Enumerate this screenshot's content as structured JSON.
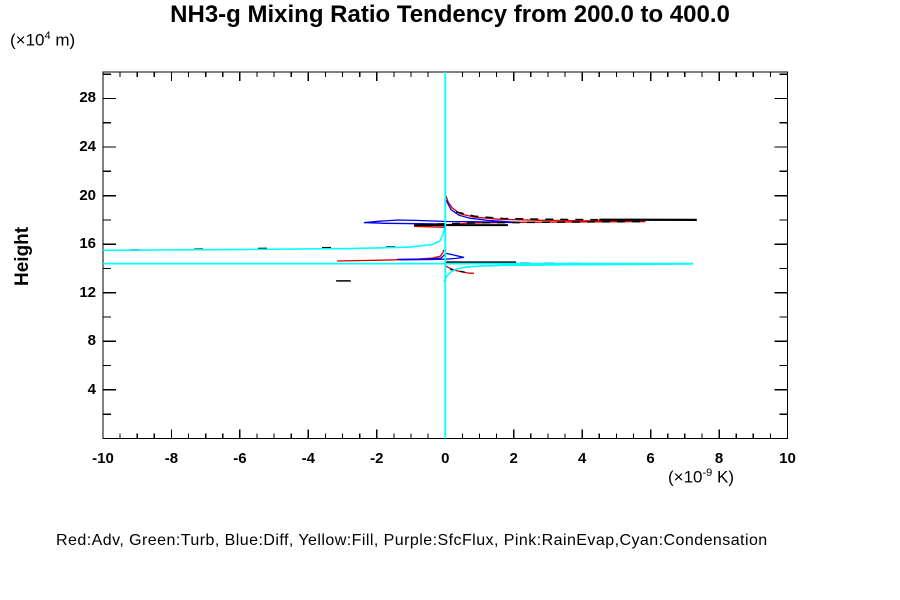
{
  "title": "NH3-g Mixing Ratio Tendency from 200.0 to 400.0",
  "y_axis_label": "Height",
  "y_unit": {
    "prefix": "(×10",
    "sup": "4",
    "suffix": " m)"
  },
  "x_unit": {
    "prefix": "(×10",
    "sup": "-9",
    "suffix": " K)"
  },
  "legend_line": "Red:Adv, Green:Turb, Blue:Diff, Yellow:Fill, Purple:SfcFlux, Pink:RainEvap,Cyan:Condensation",
  "chart_data": {
    "type": "line",
    "title": "NH3-g Mixing Ratio Tendency from 200.0 to 400.0",
    "xlabel": "(×10⁻⁹ K)",
    "ylabel": "Height (×10⁴ m)",
    "xlim": [
      -10,
      10
    ],
    "ylim": [
      0,
      30.18
    ],
    "grid": false,
    "x_ticks": [
      -10,
      -8,
      -6,
      -4,
      -2,
      0,
      2,
      4,
      6,
      8,
      10
    ],
    "x_tick_labels": [
      "-10",
      "-8",
      "-6",
      "-4",
      "-2",
      "0",
      "2",
      "4",
      "6",
      "8",
      "10"
    ],
    "x_minor_step": 0.5,
    "y_ticks": [
      4,
      8,
      12,
      16,
      20,
      24,
      28
    ],
    "y_tick_labels": [
      "4",
      "8",
      "12",
      "16",
      "20",
      "24",
      "28"
    ],
    "y_minor_step": 2,
    "legend": [
      "Red:Adv",
      "Green:Turb",
      "Blue:Diff",
      "Yellow:Fill",
      "Purple:SfcFlux",
      "Pink:RainEvap",
      "Cyan:Condensation"
    ],
    "series": [
      {
        "name": "adv-red-upper-spike",
        "color": "#dd0000",
        "width": 1.3,
        "dash": "",
        "points": [
          [
            0.02,
            20.0
          ],
          [
            0.08,
            19.5
          ],
          [
            0.2,
            19.0
          ],
          [
            0.43,
            18.5
          ],
          [
            0.87,
            18.22
          ],
          [
            1.6,
            18.05
          ],
          [
            2.77,
            17.97
          ],
          [
            4.0,
            17.93
          ],
          [
            5.2,
            17.89
          ],
          [
            5.85,
            17.86
          ],
          [
            4.5,
            17.84
          ],
          [
            2.18,
            17.8
          ],
          [
            0.72,
            17.74
          ],
          [
            0.14,
            17.62
          ],
          [
            -0.91,
            17.47
          ],
          [
            -0.01,
            17.39
          ],
          [
            -0.01,
            17.0
          ]
        ]
      },
      {
        "name": "adv-red-lower-left",
        "color": "#dd0000",
        "width": 1.3,
        "dash": "",
        "points": [
          [
            -3.16,
            14.62
          ],
          [
            -1.91,
            14.68
          ],
          [
            -0.89,
            14.76
          ],
          [
            -0.36,
            14.86
          ],
          [
            -0.15,
            15.0
          ],
          [
            -0.07,
            15.3
          ],
          [
            -0.04,
            15.54
          ]
        ]
      },
      {
        "name": "adv-red-lower-right",
        "color": "#dd0000",
        "width": 1.3,
        "dash": "",
        "points": [
          [
            -0.01,
            14.26
          ],
          [
            0.11,
            14.06
          ],
          [
            0.28,
            13.85
          ],
          [
            0.46,
            13.73
          ],
          [
            0.66,
            13.63
          ],
          [
            0.84,
            13.6
          ]
        ]
      },
      {
        "name": "diff-blue-upper",
        "color": "#0000ee",
        "width": 1.3,
        "dash": "",
        "points": [
          [
            0.02,
            19.66
          ],
          [
            0.17,
            18.84
          ],
          [
            0.4,
            18.39
          ],
          [
            0.72,
            18.14
          ],
          [
            1.25,
            17.96
          ],
          [
            1.95,
            17.83
          ],
          [
            2.18,
            17.78
          ],
          [
            1.6,
            17.82
          ],
          [
            0.72,
            17.85
          ],
          [
            0.05,
            17.87
          ],
          [
            -0.74,
            17.95
          ],
          [
            -1.38,
            17.99
          ],
          [
            -1.91,
            17.89
          ],
          [
            -2.38,
            17.78
          ],
          [
            -1.76,
            17.72
          ],
          [
            -0.74,
            17.69
          ],
          [
            -0.04,
            17.66
          ],
          [
            -0.01,
            17.35
          ]
        ]
      },
      {
        "name": "diff-blue-lower",
        "color": "#0000ee",
        "width": 1.3,
        "dash": "",
        "points": [
          [
            -1.41,
            14.75
          ],
          [
            -0.51,
            14.78
          ],
          [
            -0.13,
            14.85
          ],
          [
            -0.04,
            15.09
          ],
          [
            0.02,
            15.25
          ],
          [
            0.2,
            15.14
          ],
          [
            0.43,
            14.99
          ],
          [
            0.55,
            14.91
          ],
          [
            0.28,
            14.82
          ],
          [
            0.02,
            14.77
          ],
          [
            -0.51,
            14.73
          ],
          [
            -1.32,
            14.72
          ]
        ]
      },
      {
        "name": "black-dash-upper-out",
        "color": "#000000",
        "width": 1.5,
        "dash": "8,7",
        "points": [
          [
            0.31,
            18.67
          ],
          [
            0.87,
            18.3
          ],
          [
            1.74,
            18.11
          ],
          [
            3.35,
            18.04
          ],
          [
            4.5,
            18.02
          ]
        ]
      },
      {
        "name": "black-solid-tip",
        "color": "#000000",
        "width": 2.2,
        "dash": "",
        "points": [
          [
            4.5,
            18.02
          ],
          [
            7.35,
            18.0
          ]
        ]
      },
      {
        "name": "black-dash-upper-return",
        "color": "#000000",
        "width": 1.5,
        "dash": "8,7",
        "points": [
          [
            5.69,
            17.86
          ],
          [
            3.35,
            17.82
          ],
          [
            1.01,
            17.76
          ],
          [
            -0.15,
            17.66
          ],
          [
            -0.86,
            17.57
          ]
        ]
      },
      {
        "name": "black-solid-mid",
        "color": "#000000",
        "width": 2,
        "dash": "",
        "points": [
          [
            -0.91,
            17.57
          ],
          [
            1.83,
            17.57
          ]
        ]
      },
      {
        "name": "black-solid-lower",
        "color": "#000000",
        "width": 2,
        "dash": "",
        "points": [
          [
            -0.01,
            14.5
          ],
          [
            2.07,
            14.5
          ]
        ]
      },
      {
        "name": "black-dash-lower",
        "color": "#000000",
        "width": 1.8,
        "dash": "11,13",
        "points": [
          [
            2.18,
            14.42
          ],
          [
            5.69,
            14.36
          ]
        ]
      },
      {
        "name": "black-dash-slope",
        "color": "#000000",
        "width": 1.4,
        "dash": "9,55",
        "points": [
          [
            -9.21,
            15.52
          ],
          [
            -0.74,
            15.81
          ]
        ]
      },
      {
        "name": "black-stray-dash",
        "color": "#000000",
        "width": 1.5,
        "dash": "",
        "points": [
          [
            -3.19,
            12.98
          ],
          [
            -2.76,
            12.98
          ]
        ]
      },
      {
        "name": "black-dash-descend",
        "color": "#000000",
        "width": 1.3,
        "dash": "5,5",
        "points": [
          [
            0.14,
            13.93
          ],
          [
            0.72,
            13.62
          ]
        ]
      },
      {
        "name": "condensation-cyan-vertical",
        "color": "#00ffff",
        "width": 1.8,
        "dash": "",
        "points": [
          [
            0,
            0
          ],
          [
            0,
            30.18
          ]
        ]
      },
      {
        "name": "condensation-cyan-slope",
        "color": "#00ffff",
        "width": 1.6,
        "dash": "",
        "points": [
          [
            -10,
            15.5
          ],
          [
            -5.71,
            15.57
          ],
          [
            -2.78,
            15.64
          ],
          [
            -1.03,
            15.76
          ],
          [
            -0.39,
            15.97
          ],
          [
            -0.15,
            16.28
          ],
          [
            -0.07,
            16.78
          ],
          [
            -0.02,
            17.35
          ]
        ]
      },
      {
        "name": "condensation-cyan-horizontal",
        "color": "#00ffff",
        "width": 1.8,
        "dash": "",
        "points": [
          [
            -10,
            14.4
          ],
          [
            7.24,
            14.4
          ]
        ]
      },
      {
        "name": "condensation-cyan-lower-curve",
        "color": "#00ffff",
        "width": 1.6,
        "dash": "",
        "points": [
          [
            -0.04,
            12.9
          ],
          [
            0.05,
            13.4
          ],
          [
            0.17,
            13.73
          ],
          [
            0.34,
            13.97
          ],
          [
            0.6,
            14.11
          ],
          [
            1.01,
            14.2
          ],
          [
            1.74,
            14.26
          ],
          [
            3.35,
            14.3
          ],
          [
            5.1,
            14.33
          ],
          [
            7.24,
            14.38
          ]
        ]
      }
    ]
  }
}
